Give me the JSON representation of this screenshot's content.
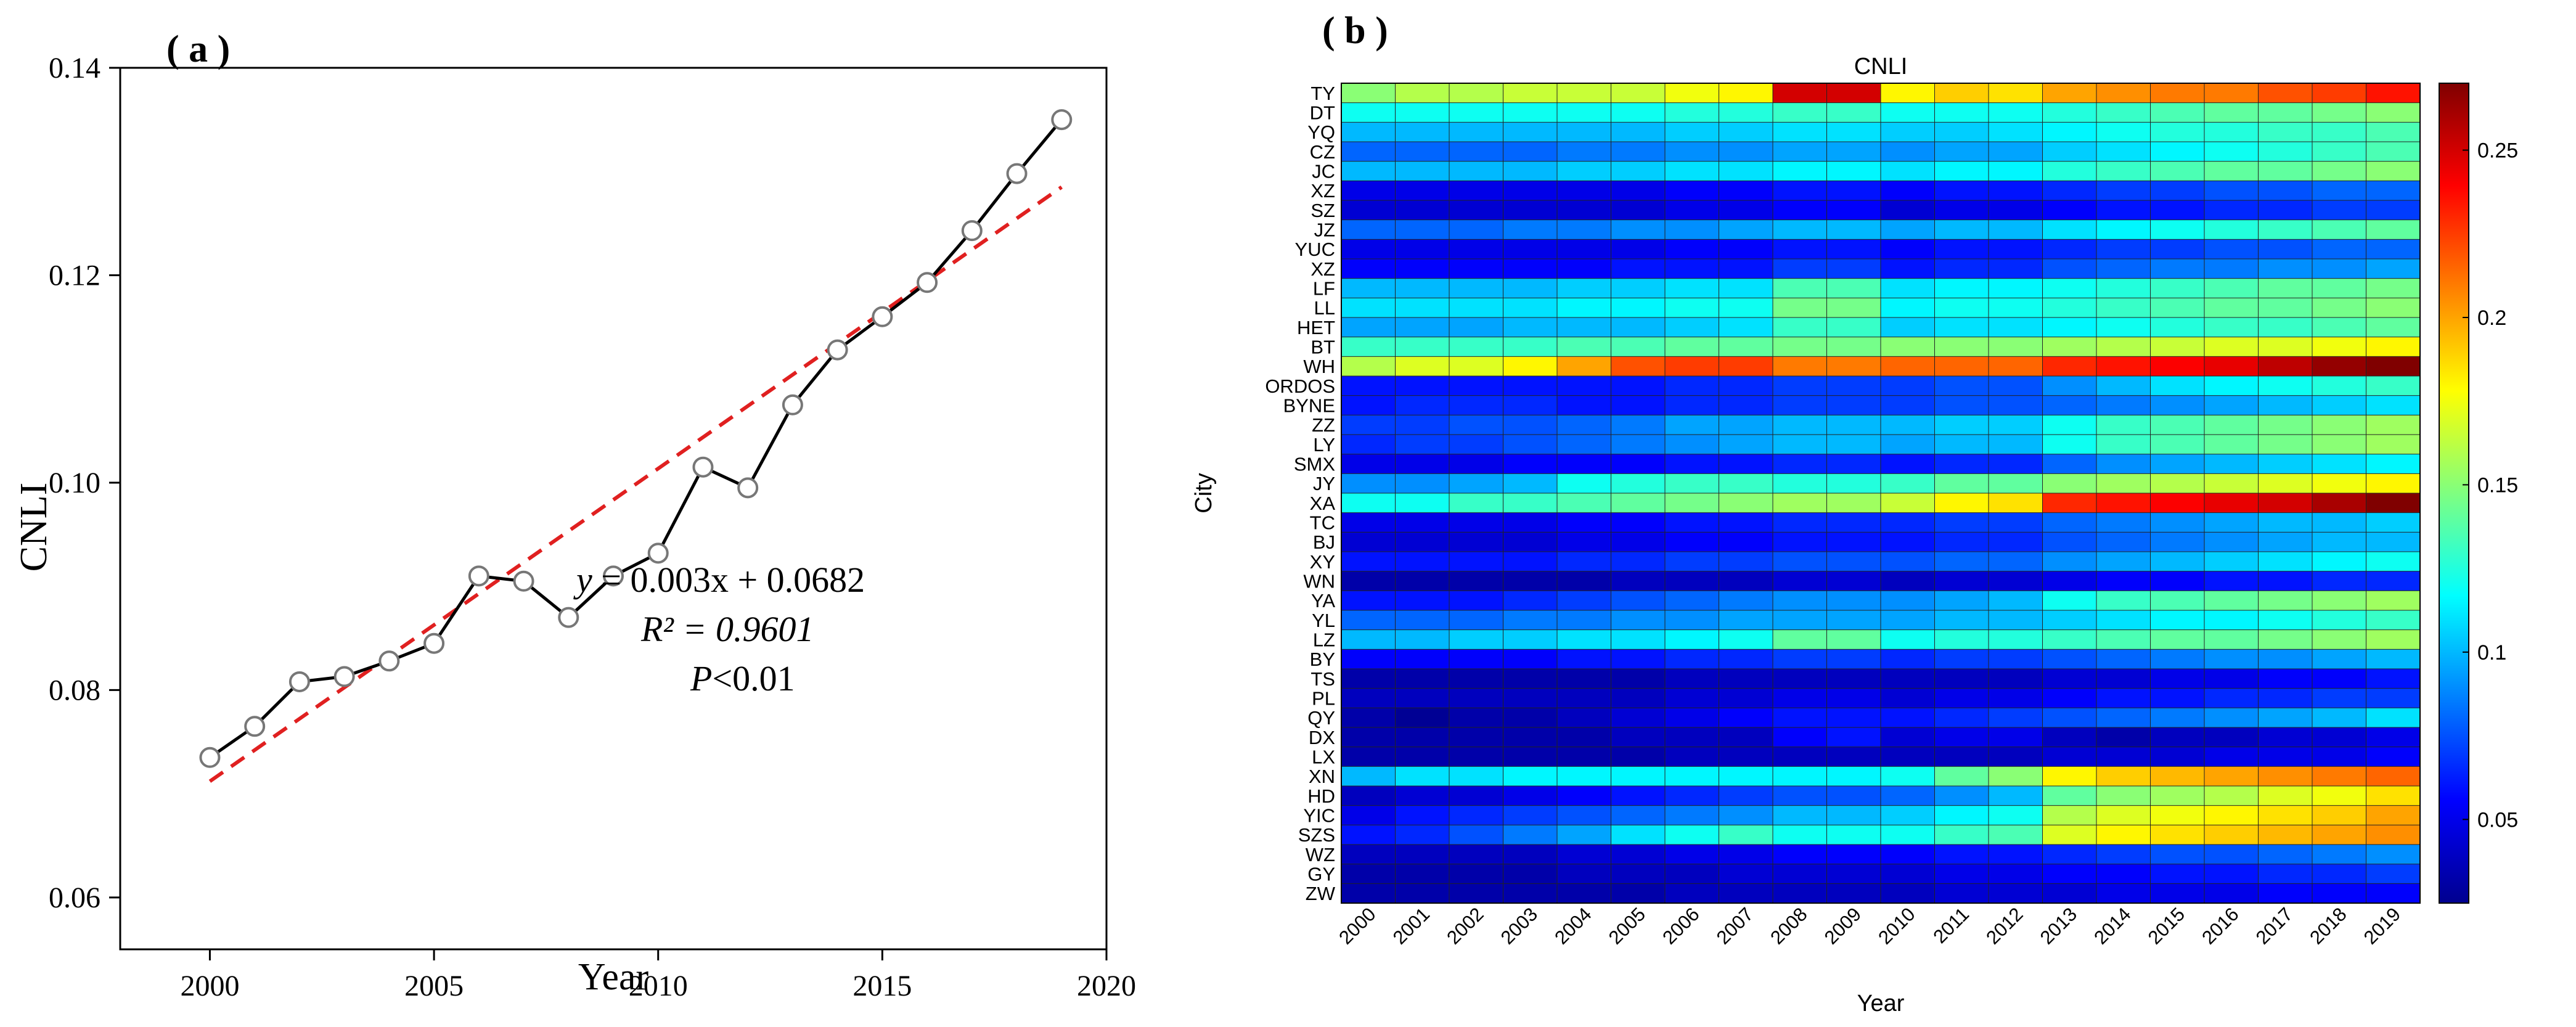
{
  "chart_data": [
    {
      "type": "line",
      "panel_label": "( a )",
      "xlabel": "Year",
      "ylabel": "CNLI",
      "xlim": [
        1998,
        2020
      ],
      "ylim": [
        0.055,
        0.14
      ],
      "x_ticks": [
        2000,
        2005,
        2010,
        2015,
        2020
      ],
      "y_ticks": [
        0.06,
        0.08,
        0.1,
        0.12,
        0.14
      ],
      "y_tick_labels": [
        "0.06",
        "0.08",
        "0.10",
        "0.12",
        "0.14"
      ],
      "series": [
        {
          "name": "CNLI",
          "color": "#000000",
          "marker": "open-circle",
          "x": [
            2000,
            2001,
            2002,
            2003,
            2004,
            2005,
            2006,
            2007,
            2008,
            2009,
            2010,
            2011,
            2012,
            2013,
            2014,
            2015,
            2016,
            2017,
            2018,
            2019
          ],
          "y": [
            0.0735,
            0.0765,
            0.0808,
            0.0813,
            0.0828,
            0.0845,
            0.091,
            0.0905,
            0.087,
            0.091,
            0.0932,
            0.1015,
            0.0995,
            0.1075,
            0.1128,
            0.116,
            0.1193,
            0.1243,
            0.1298,
            0.135
          ]
        }
      ],
      "fit": {
        "slope": 0.003,
        "intercept": 0.0682,
        "x_from": 2000,
        "x_to": 2019,
        "y_from": 0.0712,
        "y_to": 0.1285,
        "color": "#e02020"
      },
      "annotations": {
        "eq_prefix": "y",
        "eq_suffix": " = 0.003x + 0.0682",
        "r2": "R² = 0.9601",
        "p_prefix": "P",
        "p_suffix": "<0.01"
      }
    },
    {
      "type": "heatmap",
      "panel_label": "( b )",
      "title": "CNLI",
      "xlabel": "Year",
      "ylabel": "City",
      "years": [
        "2000",
        "2001",
        "2002",
        "2003",
        "2004",
        "2005",
        "2006",
        "2007",
        "2008",
        "2009",
        "2010",
        "2011",
        "2012",
        "2013",
        "2014",
        "2015",
        "2016",
        "2017",
        "2018",
        "2019"
      ],
      "cities": [
        "TY",
        "DT",
        "YQ",
        "CZ",
        "JC",
        "XZ",
        "SZ",
        "JZ",
        "YUC",
        "XZ",
        "LF",
        "LL",
        "HET",
        "BT",
        "WH",
        "ORDOS",
        "BYNE",
        "ZZ",
        "LY",
        "SMX",
        "JY",
        "XA",
        "TC",
        "BJ",
        "XY",
        "WN",
        "YA",
        "YL",
        "LZ",
        "BY",
        "TS",
        "PL",
        "QY",
        "DX",
        "LX",
        "XN",
        "HD",
        "YIC",
        "SZS",
        "WZ",
        "GY",
        "ZW"
      ],
      "colorbar": {
        "min": 0.025,
        "max": 0.27,
        "ticks": [
          0.05,
          0.1,
          0.15,
          0.2,
          0.25
        ],
        "tick_labels": [
          "0.05",
          "0.1",
          "0.15",
          "0.2",
          "0.25"
        ],
        "colormap": "jet"
      },
      "values": [
        [
          0.15,
          0.16,
          0.16,
          0.165,
          0.165,
          0.165,
          0.175,
          0.18,
          0.25,
          0.25,
          0.18,
          0.19,
          0.185,
          0.2,
          0.205,
          0.21,
          0.21,
          0.22,
          0.225,
          0.235
        ],
        [
          0.12,
          0.12,
          0.12,
          0.12,
          0.12,
          0.12,
          0.125,
          0.125,
          0.13,
          0.13,
          0.12,
          0.12,
          0.12,
          0.125,
          0.13,
          0.135,
          0.14,
          0.14,
          0.145,
          0.15
        ],
        [
          0.1,
          0.1,
          0.1,
          0.1,
          0.1,
          0.1,
          0.105,
          0.105,
          0.11,
          0.11,
          0.105,
          0.105,
          0.11,
          0.115,
          0.12,
          0.125,
          0.125,
          0.13,
          0.13,
          0.135
        ],
        [
          0.08,
          0.08,
          0.08,
          0.08,
          0.085,
          0.085,
          0.09,
          0.09,
          0.095,
          0.095,
          0.09,
          0.095,
          0.095,
          0.105,
          0.11,
          0.115,
          0.12,
          0.125,
          0.13,
          0.135
        ],
        [
          0.1,
          0.1,
          0.1,
          0.1,
          0.105,
          0.105,
          0.11,
          0.11,
          0.115,
          0.115,
          0.11,
          0.115,
          0.115,
          0.125,
          0.13,
          0.135,
          0.14,
          0.14,
          0.145,
          0.15
        ],
        [
          0.05,
          0.05,
          0.05,
          0.05,
          0.05,
          0.05,
          0.055,
          0.055,
          0.06,
          0.06,
          0.055,
          0.06,
          0.06,
          0.065,
          0.07,
          0.07,
          0.075,
          0.075,
          0.08,
          0.08
        ],
        [
          0.045,
          0.045,
          0.045,
          0.045,
          0.045,
          0.045,
          0.05,
          0.05,
          0.055,
          0.055,
          0.045,
          0.05,
          0.05,
          0.055,
          0.06,
          0.06,
          0.065,
          0.065,
          0.07,
          0.07
        ],
        [
          0.08,
          0.08,
          0.08,
          0.085,
          0.085,
          0.09,
          0.09,
          0.095,
          0.1,
          0.1,
          0.095,
          0.1,
          0.1,
          0.11,
          0.115,
          0.12,
          0.125,
          0.13,
          0.135,
          0.14
        ],
        [
          0.05,
          0.05,
          0.05,
          0.05,
          0.05,
          0.05,
          0.055,
          0.055,
          0.06,
          0.06,
          0.055,
          0.06,
          0.06,
          0.065,
          0.07,
          0.07,
          0.075,
          0.075,
          0.08,
          0.08
        ],
        [
          0.055,
          0.055,
          0.055,
          0.055,
          0.055,
          0.06,
          0.06,
          0.06,
          0.07,
          0.07,
          0.06,
          0.065,
          0.065,
          0.075,
          0.08,
          0.085,
          0.085,
          0.09,
          0.09,
          0.095
        ],
        [
          0.1,
          0.1,
          0.1,
          0.1,
          0.105,
          0.105,
          0.11,
          0.11,
          0.135,
          0.135,
          0.11,
          0.115,
          0.115,
          0.12,
          0.125,
          0.13,
          0.135,
          0.14,
          0.14,
          0.145
        ],
        [
          0.11,
          0.11,
          0.11,
          0.11,
          0.115,
          0.115,
          0.12,
          0.12,
          0.145,
          0.145,
          0.115,
          0.12,
          0.12,
          0.125,
          0.13,
          0.135,
          0.14,
          0.14,
          0.145,
          0.15
        ],
        [
          0.095,
          0.095,
          0.095,
          0.1,
          0.1,
          0.1,
          0.105,
          0.11,
          0.13,
          0.13,
          0.105,
          0.11,
          0.11,
          0.115,
          0.12,
          0.125,
          0.13,
          0.13,
          0.135,
          0.14
        ],
        [
          0.13,
          0.13,
          0.13,
          0.13,
          0.135,
          0.135,
          0.14,
          0.14,
          0.145,
          0.145,
          0.15,
          0.15,
          0.15,
          0.155,
          0.16,
          0.165,
          0.17,
          0.17,
          0.175,
          0.18
        ],
        [
          0.16,
          0.17,
          0.17,
          0.18,
          0.2,
          0.22,
          0.225,
          0.225,
          0.21,
          0.21,
          0.215,
          0.215,
          0.215,
          0.23,
          0.235,
          0.24,
          0.245,
          0.255,
          0.265,
          0.27
        ],
        [
          0.06,
          0.06,
          0.06,
          0.06,
          0.06,
          0.06,
          0.065,
          0.065,
          0.07,
          0.07,
          0.07,
          0.075,
          0.075,
          0.09,
          0.1,
          0.11,
          0.115,
          0.12,
          0.125,
          0.13
        ],
        [
          0.06,
          0.065,
          0.065,
          0.065,
          0.06,
          0.06,
          0.065,
          0.065,
          0.07,
          0.07,
          0.07,
          0.075,
          0.075,
          0.08,
          0.085,
          0.09,
          0.095,
          0.1,
          0.105,
          0.11
        ],
        [
          0.07,
          0.07,
          0.075,
          0.075,
          0.08,
          0.085,
          0.095,
          0.095,
          0.1,
          0.1,
          0.1,
          0.105,
          0.105,
          0.12,
          0.13,
          0.135,
          0.14,
          0.145,
          0.15,
          0.155
        ],
        [
          0.065,
          0.07,
          0.07,
          0.075,
          0.08,
          0.085,
          0.09,
          0.095,
          0.1,
          0.1,
          0.095,
          0.1,
          0.1,
          0.12,
          0.13,
          0.135,
          0.14,
          0.145,
          0.15,
          0.155
        ],
        [
          0.05,
          0.05,
          0.05,
          0.055,
          0.055,
          0.055,
          0.06,
          0.06,
          0.065,
          0.065,
          0.06,
          0.065,
          0.065,
          0.08,
          0.09,
          0.095,
          0.1,
          0.105,
          0.11,
          0.115
        ],
        [
          0.09,
          0.09,
          0.095,
          0.1,
          0.12,
          0.125,
          0.13,
          0.13,
          0.125,
          0.125,
          0.13,
          0.14,
          0.14,
          0.15,
          0.155,
          0.16,
          0.165,
          0.17,
          0.175,
          0.18
        ],
        [
          0.12,
          0.12,
          0.13,
          0.13,
          0.135,
          0.14,
          0.145,
          0.15,
          0.155,
          0.155,
          0.165,
          0.18,
          0.185,
          0.23,
          0.235,
          0.24,
          0.245,
          0.25,
          0.26,
          0.27
        ],
        [
          0.05,
          0.05,
          0.05,
          0.05,
          0.055,
          0.055,
          0.06,
          0.06,
          0.065,
          0.065,
          0.065,
          0.07,
          0.07,
          0.08,
          0.085,
          0.09,
          0.095,
          0.1,
          0.1,
          0.105
        ],
        [
          0.045,
          0.045,
          0.045,
          0.045,
          0.05,
          0.05,
          0.055,
          0.055,
          0.06,
          0.06,
          0.06,
          0.065,
          0.065,
          0.075,
          0.08,
          0.085,
          0.09,
          0.095,
          0.1,
          0.1
        ],
        [
          0.06,
          0.06,
          0.06,
          0.06,
          0.065,
          0.065,
          0.07,
          0.07,
          0.075,
          0.075,
          0.075,
          0.08,
          0.08,
          0.09,
          0.095,
          0.1,
          0.105,
          0.11,
          0.115,
          0.12
        ],
        [
          0.035,
          0.035,
          0.035,
          0.035,
          0.035,
          0.04,
          0.04,
          0.04,
          0.045,
          0.045,
          0.04,
          0.045,
          0.045,
          0.05,
          0.055,
          0.055,
          0.06,
          0.06,
          0.065,
          0.065
        ],
        [
          0.06,
          0.06,
          0.06,
          0.065,
          0.07,
          0.075,
          0.08,
          0.085,
          0.09,
          0.09,
          0.09,
          0.095,
          0.1,
          0.12,
          0.13,
          0.135,
          0.14,
          0.145,
          0.15,
          0.155
        ],
        [
          0.08,
          0.08,
          0.08,
          0.085,
          0.085,
          0.09,
          0.09,
          0.095,
          0.095,
          0.095,
          0.095,
          0.1,
          0.1,
          0.105,
          0.11,
          0.115,
          0.115,
          0.12,
          0.125,
          0.13
        ],
        [
          0.1,
          0.1,
          0.105,
          0.105,
          0.11,
          0.11,
          0.115,
          0.12,
          0.14,
          0.14,
          0.12,
          0.125,
          0.125,
          0.13,
          0.135,
          0.14,
          0.14,
          0.145,
          0.15,
          0.155
        ],
        [
          0.055,
          0.055,
          0.055,
          0.055,
          0.06,
          0.06,
          0.065,
          0.065,
          0.07,
          0.07,
          0.065,
          0.07,
          0.07,
          0.075,
          0.08,
          0.085,
          0.09,
          0.09,
          0.095,
          0.1
        ],
        [
          0.035,
          0.035,
          0.035,
          0.035,
          0.035,
          0.035,
          0.04,
          0.04,
          0.04,
          0.04,
          0.04,
          0.04,
          0.04,
          0.045,
          0.045,
          0.05,
          0.05,
          0.055,
          0.055,
          0.06
        ],
        [
          0.04,
          0.04,
          0.04,
          0.04,
          0.04,
          0.04,
          0.045,
          0.045,
          0.05,
          0.05,
          0.045,
          0.05,
          0.05,
          0.055,
          0.06,
          0.06,
          0.065,
          0.065,
          0.07,
          0.07
        ],
        [
          0.035,
          0.03,
          0.035,
          0.035,
          0.04,
          0.045,
          0.05,
          0.055,
          0.06,
          0.06,
          0.06,
          0.065,
          0.07,
          0.075,
          0.08,
          0.085,
          0.09,
          0.095,
          0.1,
          0.11
        ],
        [
          0.035,
          0.035,
          0.035,
          0.035,
          0.035,
          0.04,
          0.04,
          0.04,
          0.055,
          0.06,
          0.045,
          0.05,
          0.05,
          0.04,
          0.035,
          0.04,
          0.04,
          0.045,
          0.045,
          0.05
        ],
        [
          0.035,
          0.035,
          0.035,
          0.035,
          0.035,
          0.035,
          0.04,
          0.04,
          0.04,
          0.04,
          0.04,
          0.04,
          0.04,
          0.045,
          0.045,
          0.045,
          0.05,
          0.05,
          0.05,
          0.055
        ],
        [
          0.1,
          0.11,
          0.11,
          0.115,
          0.115,
          0.115,
          0.115,
          0.115,
          0.115,
          0.115,
          0.12,
          0.14,
          0.15,
          0.18,
          0.19,
          0.195,
          0.2,
          0.205,
          0.21,
          0.215
        ],
        [
          0.04,
          0.045,
          0.045,
          0.05,
          0.055,
          0.06,
          0.065,
          0.07,
          0.075,
          0.075,
          0.08,
          0.09,
          0.1,
          0.14,
          0.15,
          0.155,
          0.16,
          0.17,
          0.175,
          0.185
        ],
        [
          0.05,
          0.06,
          0.065,
          0.07,
          0.075,
          0.08,
          0.085,
          0.09,
          0.1,
          0.1,
          0.105,
          0.115,
          0.12,
          0.16,
          0.17,
          0.175,
          0.18,
          0.185,
          0.19,
          0.2
        ],
        [
          0.06,
          0.065,
          0.075,
          0.085,
          0.095,
          0.11,
          0.12,
          0.13,
          0.12,
          0.12,
          0.12,
          0.13,
          0.135,
          0.17,
          0.18,
          0.185,
          0.19,
          0.195,
          0.2,
          0.205
        ],
        [
          0.04,
          0.04,
          0.04,
          0.04,
          0.045,
          0.045,
          0.05,
          0.05,
          0.055,
          0.055,
          0.055,
          0.06,
          0.06,
          0.065,
          0.07,
          0.075,
          0.075,
          0.08,
          0.085,
          0.09
        ],
        [
          0.035,
          0.035,
          0.035,
          0.035,
          0.04,
          0.04,
          0.04,
          0.045,
          0.045,
          0.045,
          0.045,
          0.05,
          0.05,
          0.055,
          0.055,
          0.06,
          0.06,
          0.065,
          0.065,
          0.07
        ],
        [
          0.035,
          0.035,
          0.035,
          0.035,
          0.035,
          0.035,
          0.04,
          0.04,
          0.04,
          0.04,
          0.04,
          0.045,
          0.045,
          0.045,
          0.05,
          0.05,
          0.05,
          0.055,
          0.055,
          0.055
        ]
      ]
    }
  ]
}
